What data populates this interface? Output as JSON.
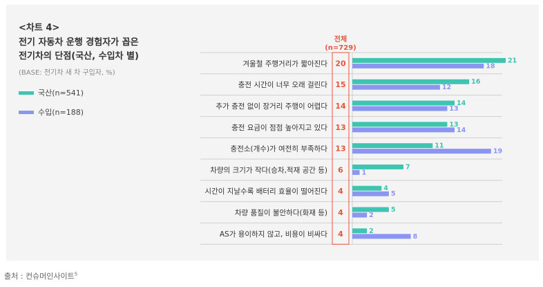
{
  "chart_label": "<차트 4>",
  "title_lines": [
    "전기 자동차 운행 경험자가 꼽은",
    "전기차의 단점(국산, 수입차 별)"
  ],
  "base_note": "(BASE: 전기차 새 차 구입자, %)",
  "source": {
    "text": "출처 : 컨슈머인사이트",
    "footnote": "5"
  },
  "colors": {
    "domestic": "#3ec4b1",
    "imported": "#8a96f0",
    "total_text": "#e8543a",
    "total_border": "#e8543a"
  },
  "chart_data": {
    "type": "bar",
    "orientation": "horizontal",
    "total_header": [
      "전체",
      "(n=729)"
    ],
    "categories": [
      "겨울철 주행거리가 짧아진다",
      "충전 시간이 너무 오래 걸린다",
      "추가 충전 없이 장거리 주행이 어렵다",
      "충전 요금이 점점 높아지고 있다",
      "충전소(개수)가 여전히 부족하다",
      "차량의 크기가 작다(승차,적재 공간 등)",
      "시간이 지날수록 배터리 효율이 떨어진다",
      "차량 품질이 불안하다(화재 등)",
      "AS가 용이하지 않고, 비용이 비싸다"
    ],
    "total": [
      20,
      15,
      14,
      13,
      13,
      6,
      4,
      4,
      4
    ],
    "series": [
      {
        "name": "국산(n=541)",
        "values": [
          21,
          16,
          14,
          13,
          11,
          7,
          4,
          5,
          2
        ]
      },
      {
        "name": "수입(n=188)",
        "values": [
          18,
          12,
          13,
          14,
          19,
          1,
          5,
          2,
          8
        ]
      }
    ],
    "xlim": [
      0,
      21
    ]
  }
}
